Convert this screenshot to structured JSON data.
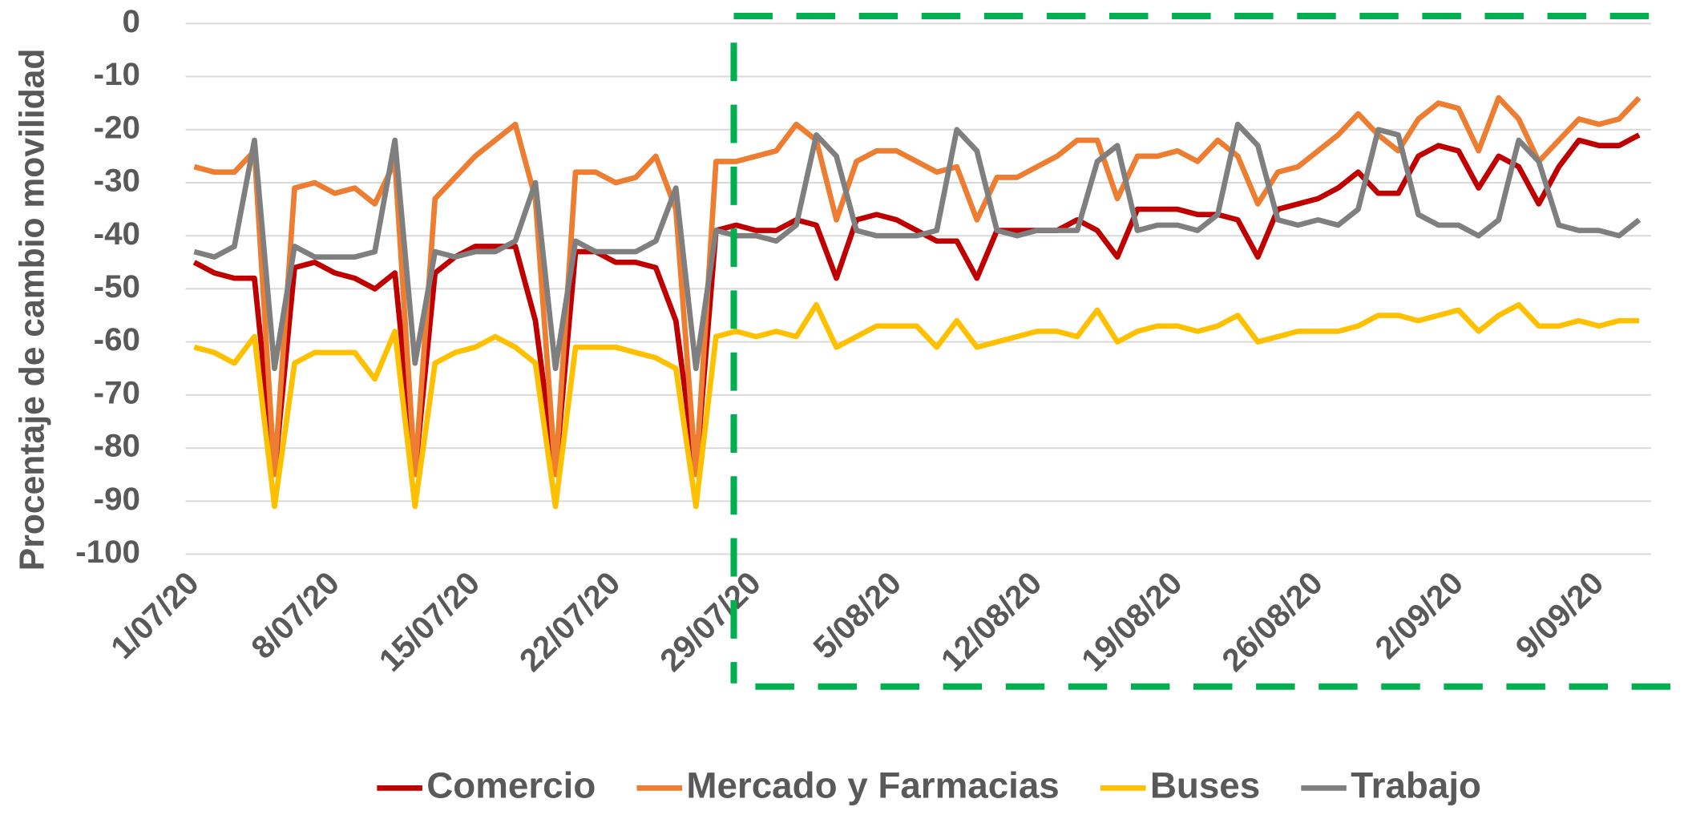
{
  "chart_data": {
    "type": "line",
    "y_label": "Procentaje de cambio movilidad",
    "categories": [
      "1/07/20",
      null,
      null,
      null,
      null,
      null,
      null,
      "8/07/20",
      null,
      null,
      null,
      null,
      null,
      null,
      "15/07/20",
      null,
      null,
      null,
      null,
      null,
      null,
      "22/07/20",
      null,
      null,
      null,
      null,
      null,
      null,
      "29/07/20",
      null,
      null,
      null,
      null,
      null,
      null,
      "5/08/20",
      null,
      null,
      null,
      null,
      null,
      null,
      "12/08/20",
      null,
      null,
      null,
      null,
      null,
      null,
      "19/08/20",
      null,
      null,
      null,
      null,
      null,
      null,
      "26/08/20",
      null,
      null,
      null,
      null,
      null,
      null,
      "2/09/20",
      null,
      null,
      null,
      null,
      null,
      null,
      "9/09/20",
      null,
      null
    ],
    "series": [
      {
        "name": "Comercio",
        "color": "#c00000",
        "values": [
          -45,
          -47,
          -48,
          -48,
          -85,
          -46,
          -45,
          -47,
          -48,
          -50,
          -47,
          -85,
          -47,
          -44,
          -42,
          -42,
          -42,
          -56,
          -85,
          -43,
          -43,
          -45,
          -45,
          -46,
          -56,
          -85,
          -39,
          -38,
          -39,
          -39,
          -37,
          -38,
          -48,
          -37,
          -36,
          -37,
          -39,
          -41,
          -41,
          -48,
          -39,
          -39,
          -39,
          -39,
          -37,
          -39,
          -44,
          -35,
          -35,
          -35,
          -36,
          -36,
          -37,
          -44,
          -35,
          -34,
          -33,
          -31,
          -28,
          -32,
          -32,
          -25,
          -23,
          -24,
          -31,
          -25,
          -27,
          -34,
          -27,
          -22,
          -23,
          -23,
          -21
        ]
      },
      {
        "name": "Mercado y Farmacias",
        "color": "#ed7d31",
        "values": [
          -27,
          -28,
          -28,
          -24,
          -85,
          -31,
          -30,
          -32,
          -31,
          -34,
          -26,
          -85,
          -33,
          -29,
          -25,
          -22,
          -19,
          -33,
          -85,
          -28,
          -28,
          -30,
          -29,
          -25,
          -35,
          -85,
          -26,
          -26,
          -25,
          -24,
          -19,
          -22,
          -37,
          -26,
          -24,
          -24,
          -26,
          -28,
          -27,
          -37,
          -29,
          -29,
          -27,
          -25,
          -22,
          -22,
          -33,
          -25,
          -25,
          -24,
          -26,
          -22,
          -25,
          -34,
          -28,
          -27,
          -24,
          -21,
          -17,
          -21,
          -24,
          -18,
          -15,
          -16,
          -24,
          -14,
          -18,
          -26,
          -22,
          -18,
          -19,
          -18,
          -14
        ]
      },
      {
        "name": "Buses",
        "color": "#ffc000",
        "values": [
          -61,
          -62,
          -64,
          -59,
          -91,
          -64,
          -62,
          -62,
          -62,
          -67,
          -58,
          -91,
          -64,
          -62,
          -61,
          -59,
          -61,
          -64,
          -91,
          -61,
          -61,
          -61,
          -62,
          -63,
          -65,
          -91,
          -59,
          -58,
          -59,
          -58,
          -59,
          -53,
          -61,
          -59,
          -57,
          -57,
          -57,
          -61,
          -56,
          -61,
          -60,
          -59,
          -58,
          -58,
          -59,
          -54,
          -60,
          -58,
          -57,
          -57,
          -58,
          -57,
          -55,
          -60,
          -59,
          -58,
          -58,
          -58,
          -57,
          -55,
          -55,
          -56,
          -55,
          -54,
          -58,
          -55,
          -53,
          -57,
          -57,
          -56,
          -57,
          -56,
          -56
        ]
      },
      {
        "name": "Trabajo",
        "color": "#7f7f7f",
        "values": [
          -43,
          -44,
          -42,
          -22,
          -65,
          -42,
          -44,
          -44,
          -44,
          -43,
          -22,
          -64,
          -43,
          -44,
          -43,
          -43,
          -41,
          -30,
          -65,
          -41,
          -43,
          -43,
          -43,
          -41,
          -31,
          -65,
          -39,
          -40,
          -40,
          -41,
          -38,
          -21,
          -25,
          -39,
          -40,
          -40,
          -40,
          -39,
          -20,
          -24,
          -39,
          -40,
          -39,
          -39,
          -39,
          -26,
          -23,
          -39,
          -38,
          -38,
          -39,
          -36,
          -19,
          -23,
          -37,
          -38,
          -37,
          -38,
          -35,
          -20,
          -21,
          -36,
          -38,
          -38,
          -40,
          -37,
          -22,
          -26,
          -38,
          -39,
          -39,
          -40,
          -37
        ]
      }
    ],
    "ylim": [
      -100,
      0
    ],
    "yticks": [
      0,
      -10,
      -20,
      -30,
      -40,
      -50,
      -60,
      -70,
      -80,
      -90,
      -100
    ],
    "grid": true,
    "legend": "bottom"
  }
}
